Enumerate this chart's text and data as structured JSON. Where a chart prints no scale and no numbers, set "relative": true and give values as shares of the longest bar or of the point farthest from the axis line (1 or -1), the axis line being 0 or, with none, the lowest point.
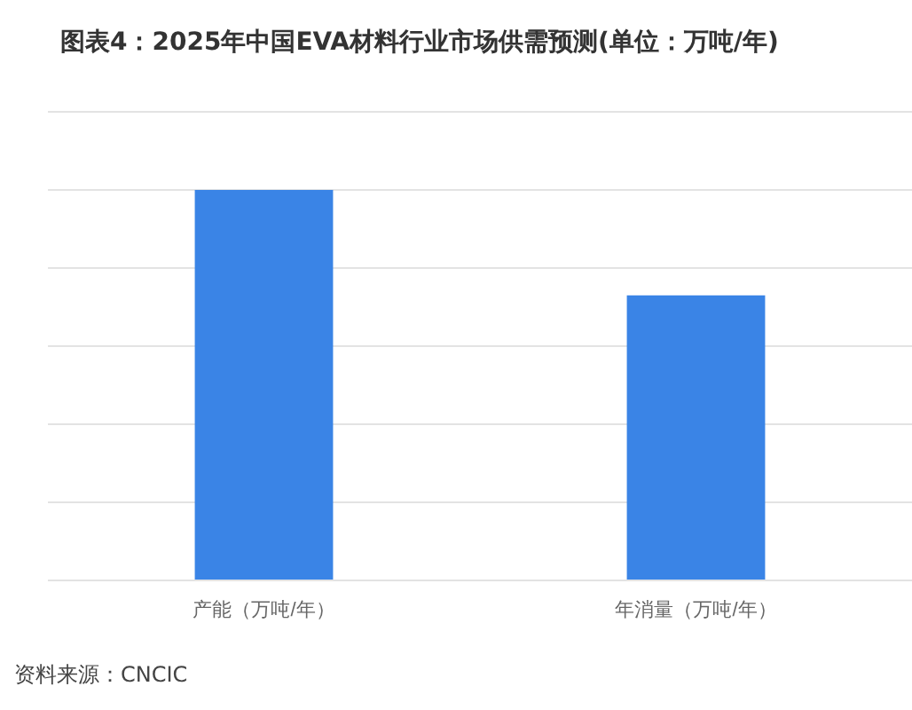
{
  "chart_data": {
    "type": "bar",
    "title": "图表4：2025年中国EVA材料行业市场供需预测(单位：万吨/年)",
    "categories": [
      "产能（万吨/年）",
      "年消量（万吨/年）"
    ],
    "values": [
      1,
      0.73
    ],
    "color": "#3a84e6",
    "relative": true,
    "grid": true,
    "annotations": [
      "资料来源：CNCIC"
    ]
  }
}
